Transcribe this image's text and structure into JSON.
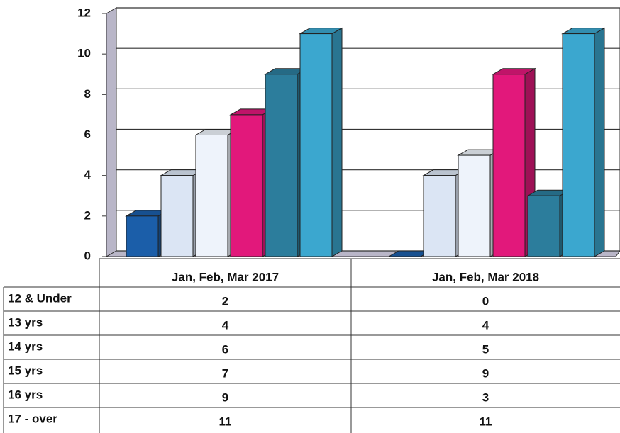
{
  "chart_data": {
    "type": "bar3d",
    "categories": [
      "Jan, Feb, Mar 2017",
      "Jan, Feb, Mar 2018"
    ],
    "series": [
      {
        "name": "12 & Under",
        "color": "#1b5ea9",
        "values": [
          2,
          0
        ]
      },
      {
        "name": "13 yrs",
        "color": "#dbe5f4",
        "values": [
          4,
          4
        ]
      },
      {
        "name": "14 yrs",
        "color": "#eef3fb",
        "values": [
          6,
          5
        ]
      },
      {
        "name": "15 yrs",
        "color": "#e2187b",
        "values": [
          7,
          9
        ]
      },
      {
        "name": "16 yrs",
        "color": "#2c7d9c",
        "values": [
          9,
          3
        ]
      },
      {
        "name": "17 - over",
        "color": "#3ba7cf",
        "values": [
          11,
          11
        ]
      }
    ],
    "ylim": [
      0,
      12
    ],
    "yticks": [
      0,
      2,
      4,
      6,
      8,
      10,
      12
    ],
    "grid": true
  }
}
